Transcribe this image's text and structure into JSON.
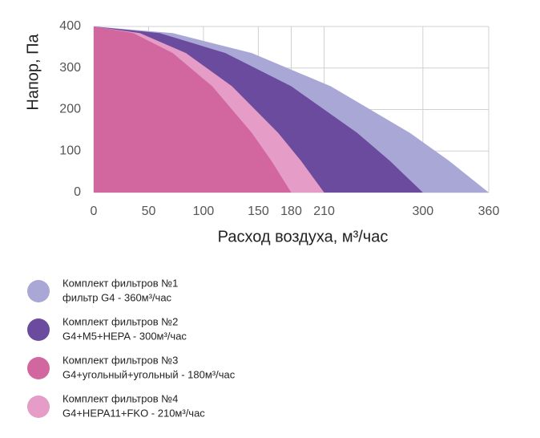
{
  "chart_data": {
    "type": "area",
    "y_label": "Напор, Па",
    "x_label": "Расход воздуха, м³/час",
    "xlim": [
      0,
      360
    ],
    "xticks": [
      0,
      50,
      100,
      150,
      180,
      210,
      300,
      360
    ],
    "ylim": [
      0,
      400
    ],
    "yticks": [
      0,
      100,
      200,
      300,
      400
    ],
    "grid": true,
    "series": [
      {
        "name": "Комплект фильтров №1",
        "description": "фильтр G4 - 360м³/час",
        "color": "#a9a7d5",
        "x": [
          0,
          72,
          144,
          216,
          288,
          324,
          360
        ],
        "values": [
          400,
          384,
          336,
          256,
          144,
          76,
          0
        ]
      },
      {
        "name": "Комплект фильтров №2",
        "description": "G4+M5+HEPA - 300м³/час",
        "color": "#6a4b9d",
        "x": [
          0,
          60,
          120,
          180,
          240,
          270,
          300
        ],
        "values": [
          400,
          384,
          336,
          256,
          144,
          76,
          0
        ]
      },
      {
        "name": "Комплект фильтров №4",
        "description": "G4+HEPA11+FKO - 210м³/час",
        "color": "#e59cc6",
        "x": [
          0,
          42,
          84,
          126,
          168,
          189,
          210
        ],
        "values": [
          400,
          384,
          336,
          256,
          144,
          76,
          0
        ]
      },
      {
        "name": "Комплект фильтров №3",
        "description": "G4+угольный+угольный - 180м³/час",
        "color": "#d2679f",
        "x": [
          0,
          36,
          72,
          108,
          144,
          162,
          180
        ],
        "values": [
          400,
          384,
          336,
          256,
          144,
          76,
          0
        ]
      }
    ],
    "legend_order": [
      0,
      1,
      3,
      2
    ]
  }
}
